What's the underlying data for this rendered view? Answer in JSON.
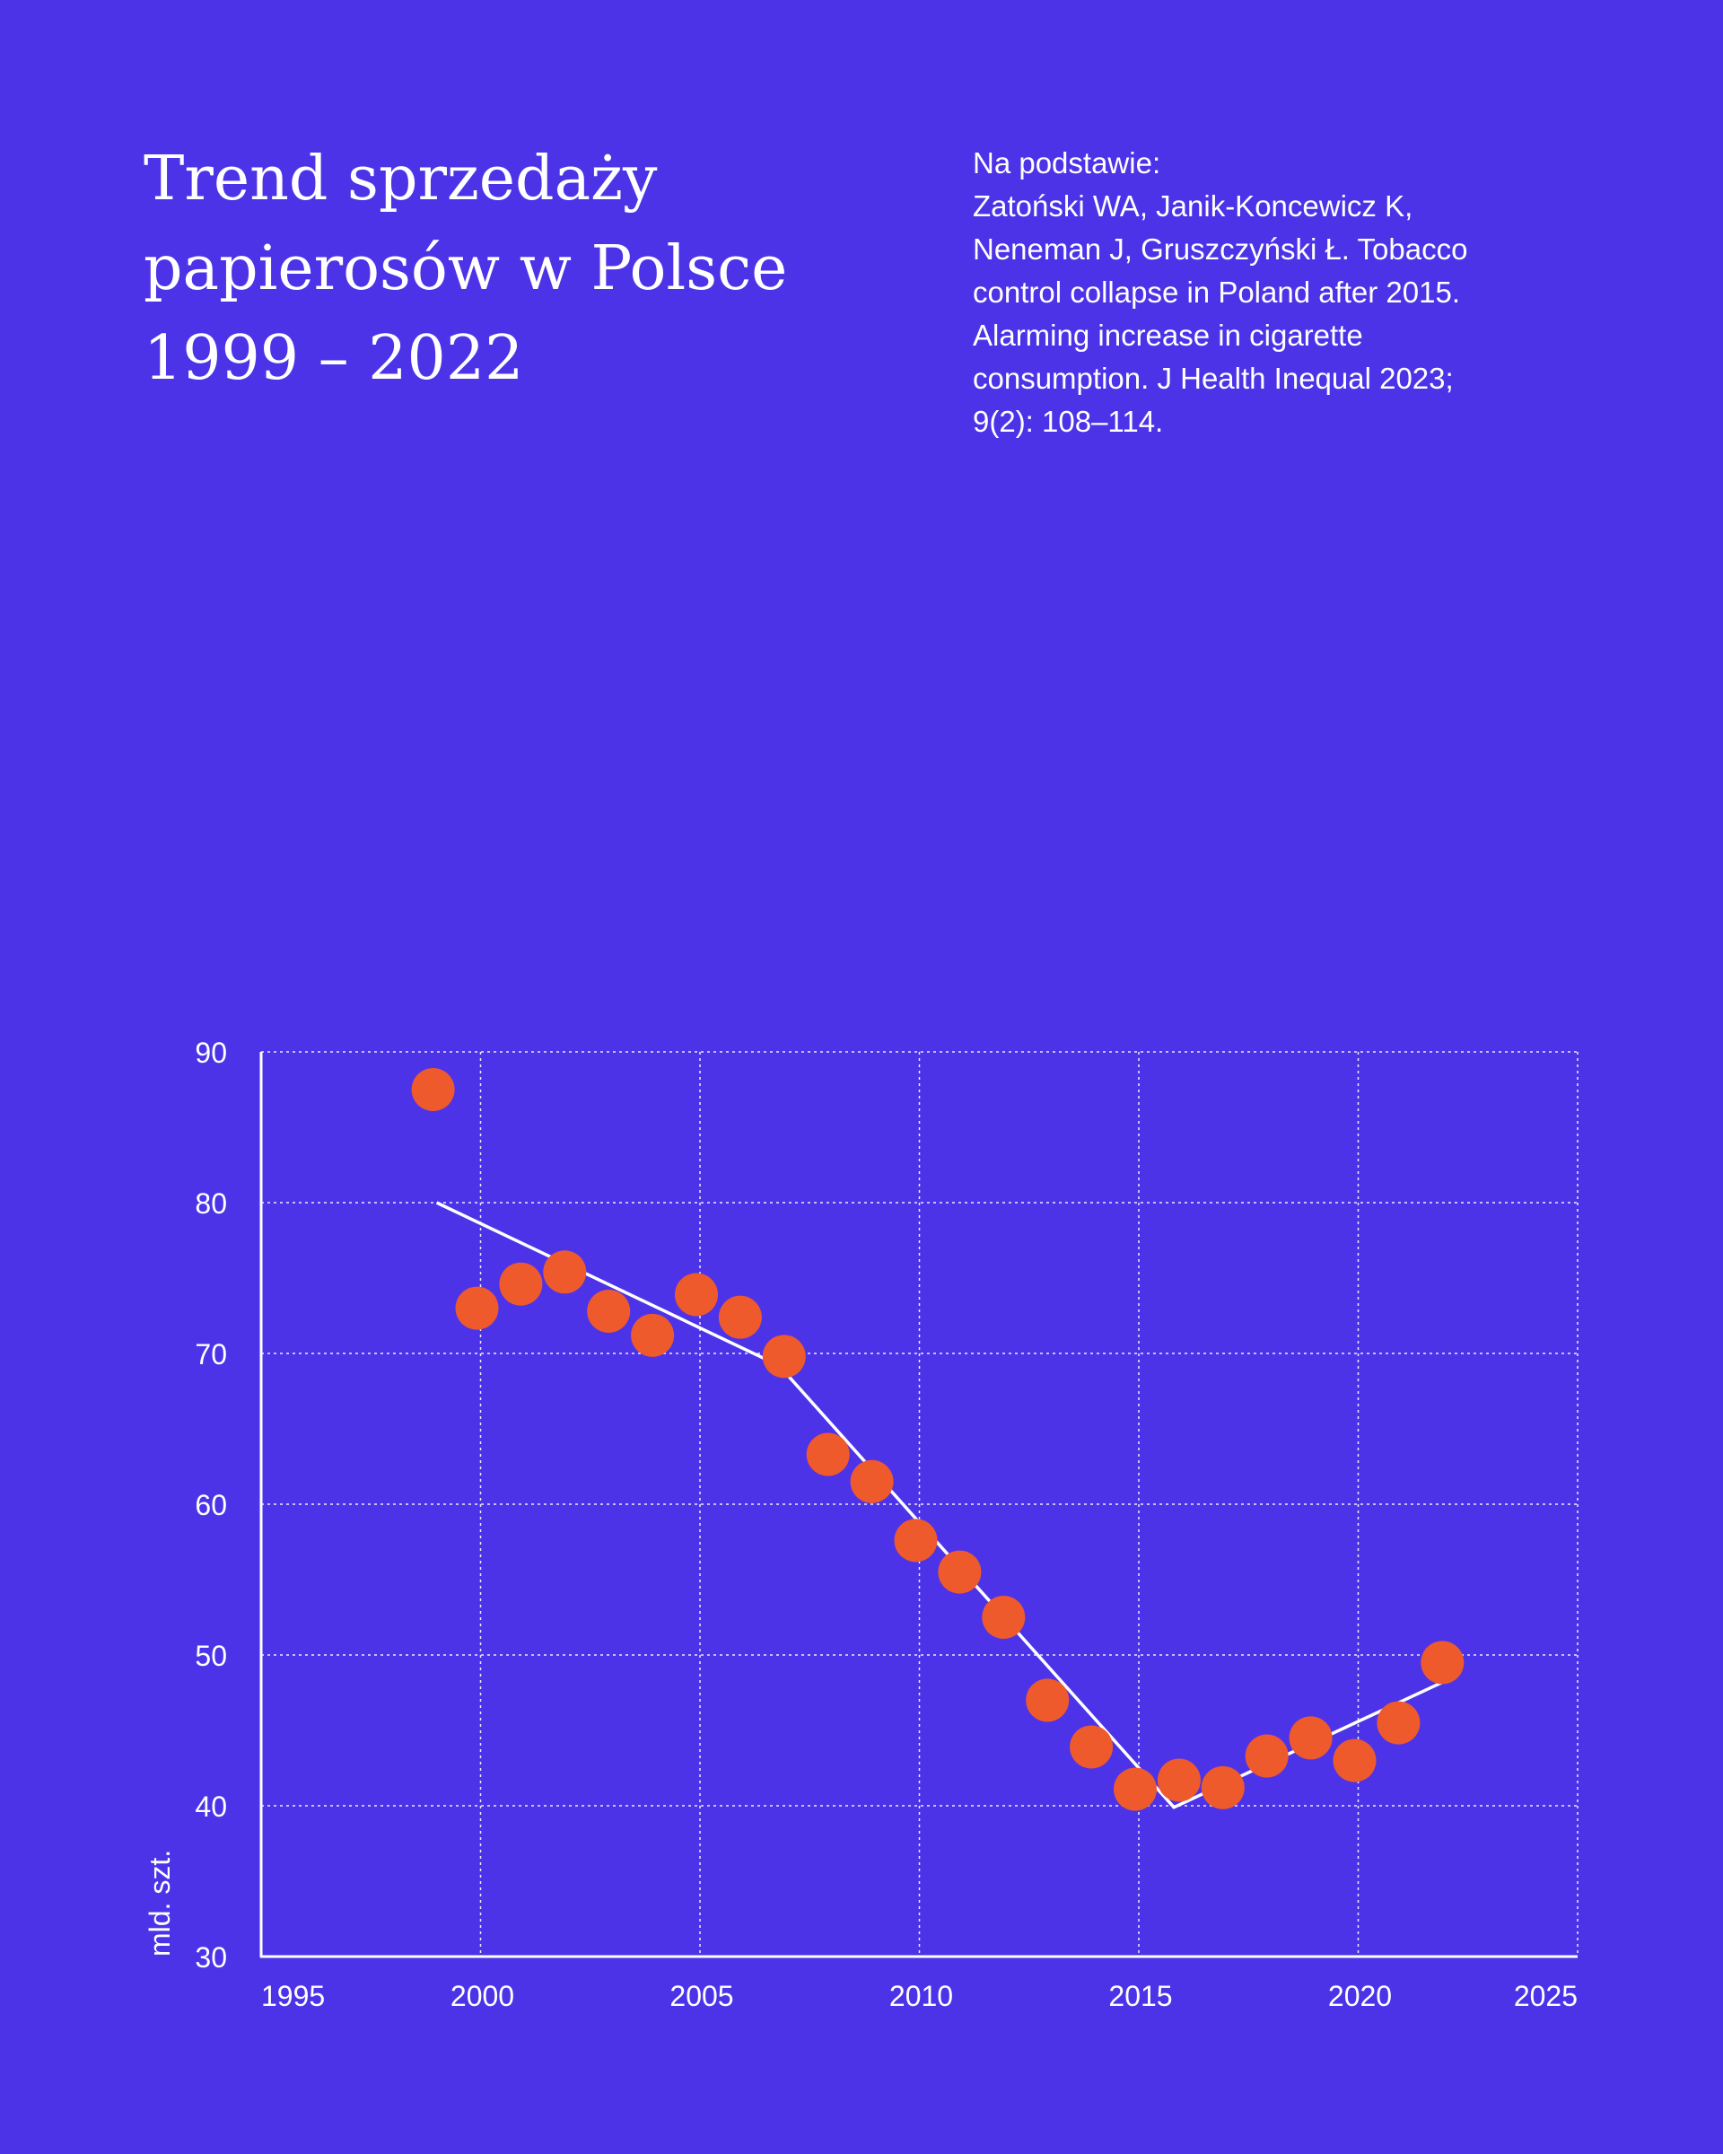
{
  "header": {
    "title_lines": [
      "Trend sprzedaży",
      "papierosów w Polsce",
      "1999 – 2022"
    ],
    "source_lines": [
      "Na podstawie:",
      "Zatoński WA, Janik-Koncewicz K,",
      "Neneman J, Gruszczyński Ł. Tobacco",
      "control collapse in Poland after 2015.",
      "Alarming increase in cigarette",
      "consumption. J Health Inequal 2023;",
      "9(2): 108–114."
    ]
  },
  "colors": {
    "background": "#4d33e8",
    "points": "#ee5a2c",
    "trend_line": "#ffffff",
    "grid": "#ffffff"
  },
  "chart_data": {
    "type": "scatter",
    "title": "",
    "ylabel": "mld. szt.",
    "xlabel": "",
    "xlim": [
      1995,
      2025
    ],
    "ylim": [
      30,
      90
    ],
    "x_ticks": [
      1995,
      2000,
      2005,
      2010,
      2015,
      2020,
      2025
    ],
    "y_ticks": [
      30,
      40,
      50,
      60,
      70,
      80,
      90
    ],
    "grid": true,
    "series": [
      {
        "type": "scatter",
        "x": [
          1999,
          2000,
          2001,
          2002,
          2003,
          2004,
          2005,
          2006,
          2007,
          2008,
          2009,
          2010,
          2011,
          2012,
          2013,
          2014,
          2015,
          2016,
          2017,
          2018,
          2019,
          2020,
          2021,
          2022
        ],
        "y": [
          87.5,
          73.0,
          74.6,
          75.4,
          72.8,
          71.2,
          73.9,
          72.4,
          69.8,
          63.3,
          61.5,
          57.6,
          55.5,
          52.5,
          47.0,
          43.9,
          41.1,
          41.7,
          41.2,
          43.3,
          44.5,
          43.0,
          45.5,
          49.5
        ]
      },
      {
        "type": "line",
        "x": [
          1999,
          2006.8,
          2015.8,
          2022
        ],
        "y": [
          80.0,
          69.2,
          39.9,
          48.3
        ]
      }
    ]
  }
}
